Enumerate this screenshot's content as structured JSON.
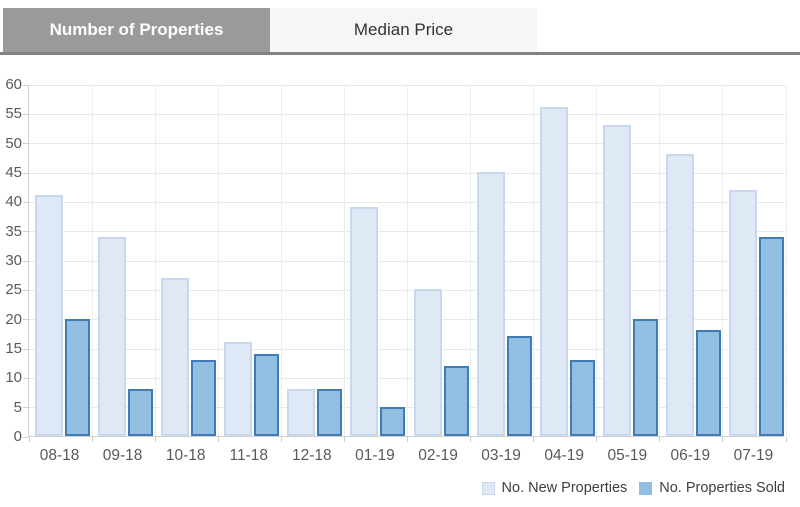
{
  "tabs": [
    {
      "label": "Number of Properties",
      "active": true
    },
    {
      "label": "Median Price",
      "active": false
    }
  ],
  "colors": {
    "active_tab_bg": "#9a9a9a",
    "active_tab_text": "#ffffff",
    "inactive_tab_bg": "#f6f6f6",
    "inactive_tab_text": "#333333",
    "tab_underline": "#828282",
    "new_fill": "#dfe9f6",
    "new_border": "#c8d9ef",
    "sold_fill": "#92bee1",
    "sold_border": "#3f7cb5",
    "grid": "#e8e8e8",
    "vgrid": "#ededed",
    "axis": "#cfcfcf",
    "axis_text": "#595959"
  },
  "chart_data": {
    "type": "bar",
    "title": "",
    "xlabel": "",
    "ylabel": "",
    "categories": [
      "08-18",
      "09-18",
      "10-18",
      "11-18",
      "12-18",
      "01-19",
      "02-19",
      "03-19",
      "04-19",
      "05-19",
      "06-19",
      "07-19"
    ],
    "series": [
      {
        "name": "No. New Properties",
        "values": [
          41,
          34,
          27,
          16,
          8,
          39,
          25,
          45,
          56,
          53,
          48,
          42
        ]
      },
      {
        "name": "No. Properties Sold",
        "values": [
          20,
          8,
          13,
          14,
          8,
          5,
          12,
          17,
          13,
          20,
          18,
          34
        ]
      }
    ],
    "ylim": [
      0,
      60
    ],
    "y_ticks": [
      0,
      5,
      10,
      15,
      20,
      25,
      30,
      35,
      40,
      45,
      50,
      55,
      60
    ],
    "grid": true,
    "legend_position": "bottom-right"
  }
}
